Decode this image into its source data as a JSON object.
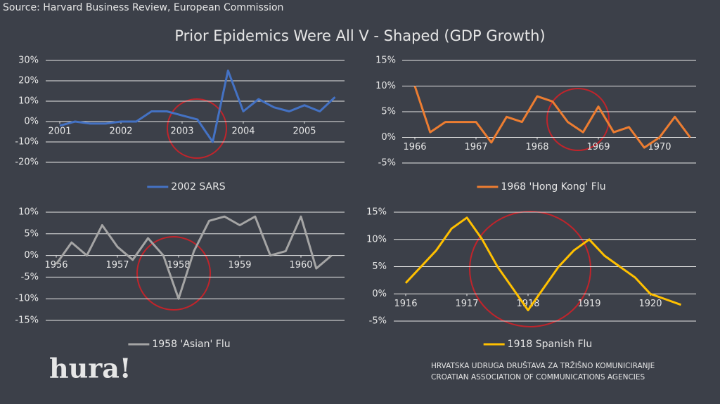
{
  "source": "Source: Harvard Business Review, European Commission",
  "title": "Prior Epidemics Were All V - Shaped (GDP Growth)",
  "logo": "hura!",
  "org_name": "HRVATSKA UDRUGA DRUŠTAVA ZA TRŽIŠNO KOMUNICIRANJE",
  "org_name_en": "CROATIAN ASSOCIATION OF COMMUNICATIONS AGENCIES",
  "chart_data": [
    {
      "type": "line",
      "x": [
        2001,
        2001.25,
        2001.5,
        2001.75,
        2002,
        2002.25,
        2002.5,
        2002.75,
        2003,
        2003.25,
        2003.5,
        2003.75,
        2004,
        2004.25,
        2004.5,
        2004.75,
        2005,
        2005.25,
        2005.5
      ],
      "series": [
        {
          "name": "2002 SARS",
          "color": "#4472c4",
          "values": [
            -2,
            0,
            -1,
            -1,
            0,
            0,
            5,
            5,
            3,
            1,
            -10,
            25,
            5,
            11,
            7,
            5,
            8,
            5,
            12
          ]
        }
      ],
      "xlim": [
        2001,
        2005.5
      ],
      "xticks": [
        2001,
        2002,
        2003,
        2004,
        2005
      ],
      "ylim": [
        -20,
        30
      ],
      "yticks": [
        {
          "value": -20,
          "label": "-20%"
        },
        {
          "value": -10,
          "label": "-10%"
        },
        {
          "value": 0,
          "label": "0%"
        },
        {
          "value": 10,
          "label": "10%"
        },
        {
          "value": 20,
          "label": "20%"
        },
        {
          "value": 30,
          "label": "30%"
        }
      ],
      "grid": true
    },
    {
      "type": "line",
      "x": [
        1966,
        1966.25,
        1966.5,
        1966.75,
        1967,
        1967.25,
        1967.5,
        1967.75,
        1968,
        1968.25,
        1968.5,
        1968.75,
        1969,
        1969.25,
        1969.5,
        1969.75,
        1970,
        1970.25,
        1970.5
      ],
      "series": [
        {
          "name": "1968 'Hong Kong' Flu",
          "color": "#ed7d31",
          "values": [
            10,
            1,
            3,
            3,
            3,
            -1,
            4,
            3,
            8,
            7,
            3,
            1,
            6,
            1,
            2,
            -2,
            0,
            4,
            0
          ]
        }
      ],
      "xlim": [
        1966,
        1970.5
      ],
      "xticks": [
        1966,
        1967,
        1968,
        1969,
        1970
      ],
      "ylim": [
        -5,
        15
      ],
      "yticks": [
        {
          "value": -5,
          "label": "-5%"
        },
        {
          "value": 0,
          "label": "0%"
        },
        {
          "value": 5,
          "label": "5%"
        },
        {
          "value": 10,
          "label": "10%"
        },
        {
          "value": 15,
          "label": "15%"
        }
      ],
      "grid": true
    },
    {
      "type": "line",
      "x": [
        1956,
        1956.25,
        1956.5,
        1956.75,
        1957,
        1957.25,
        1957.5,
        1957.75,
        1958,
        1958.25,
        1958.5,
        1958.75,
        1959,
        1959.25,
        1959.5,
        1959.75,
        1960,
        1960.25,
        1960.5
      ],
      "series": [
        {
          "name": "1958 'Asian' Flu",
          "color": "#a5a5a5",
          "values": [
            -2,
            3,
            0,
            7,
            2,
            -1,
            4,
            0,
            -10,
            1,
            8,
            9,
            7,
            9,
            0,
            1,
            9,
            -3,
            0
          ]
        }
      ],
      "xlim": [
        1956,
        1960.5
      ],
      "xticks": [
        1956,
        1957,
        1958,
        1959,
        1960
      ],
      "ylim": [
        -15,
        10
      ],
      "yticks": [
        {
          "value": -15,
          "label": "-15%"
        },
        {
          "value": -10,
          "label": "-10%"
        },
        {
          "value": -5,
          "label": "-5%"
        },
        {
          "value": 0,
          "label": "0%"
        },
        {
          "value": 5,
          "label": "5%"
        },
        {
          "value": 10,
          "label": "10%"
        }
      ],
      "grid": true
    },
    {
      "type": "line",
      "x": [
        1916,
        1916.25,
        1916.5,
        1916.75,
        1917,
        1917.25,
        1917.5,
        1917.75,
        1918,
        1918.25,
        1918.5,
        1918.75,
        1919,
        1919.25,
        1919.5,
        1919.75,
        1920,
        1920.25,
        1920.5
      ],
      "series": [
        {
          "name": "1918 Spanish Flu",
          "color": "#ffc000",
          "values": [
            2,
            5,
            8,
            12,
            14,
            10,
            5,
            1,
            -3,
            1,
            5,
            8,
            10,
            7,
            5,
            3,
            0,
            -1,
            -2
          ]
        }
      ],
      "xlim": [
        1916,
        1920.5
      ],
      "xticks": [
        1916,
        1917,
        1918,
        1919,
        1920
      ],
      "ylim": [
        -5,
        15
      ],
      "yticks": [
        {
          "value": -5,
          "label": "-5%"
        },
        {
          "value": 0,
          "label": "0%"
        },
        {
          "value": 5,
          "label": "5%"
        },
        {
          "value": 10,
          "label": "10%"
        },
        {
          "value": 15,
          "label": "15%"
        }
      ],
      "grid": true
    }
  ]
}
